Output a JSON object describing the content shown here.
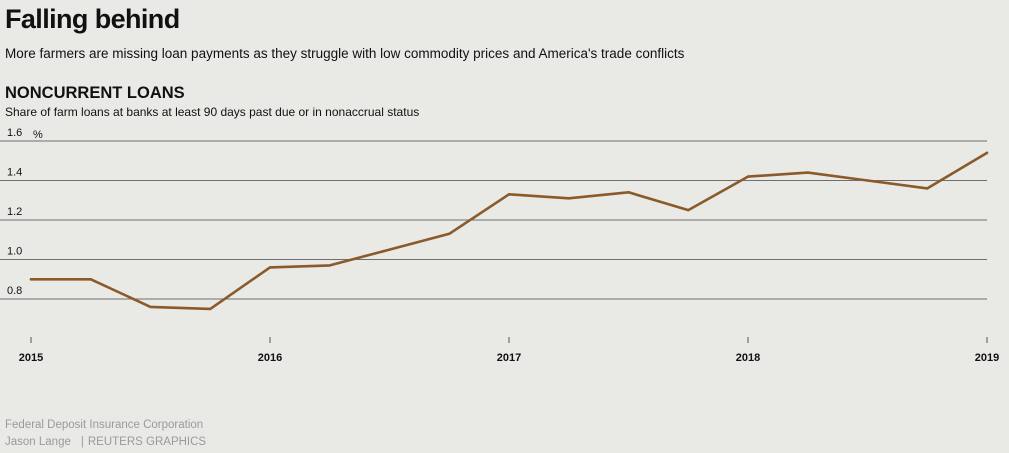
{
  "header": {
    "title": "Falling behind",
    "subtitle": "More farmers are missing loan payments as they struggle with low commodity prices and America's trade conflicts"
  },
  "chart_data": {
    "type": "line",
    "title": "NONCURRENT LOANS",
    "subtitle": "Share of farm loans at banks at least 90 days past due or in nonaccrual status",
    "ylabel": "%",
    "xlabel": "",
    "ylim": [
      0.8,
      1.6
    ],
    "yticks": [
      0.8,
      1.0,
      1.2,
      1.4,
      1.6
    ],
    "ytick_labels": [
      "0.8",
      "1.0",
      "1.2",
      "1.4",
      "1.6"
    ],
    "xlim": [
      2015,
      2019
    ],
    "xticks": [
      2015,
      2016,
      2017,
      2018,
      2019
    ],
    "xtick_labels": [
      "2015",
      "2016",
      "2017",
      "2018",
      "2019"
    ],
    "grid": true,
    "color": "#8b5a2b",
    "series": [
      {
        "name": "Noncurrent loans",
        "x": [
          2015.0,
          2015.25,
          2015.5,
          2015.75,
          2016.0,
          2016.25,
          2016.5,
          2016.75,
          2017.0,
          2017.25,
          2017.5,
          2017.75,
          2018.0,
          2018.25,
          2018.5,
          2018.75,
          2019.0
        ],
        "values": [
          0.9,
          0.9,
          0.76,
          0.75,
          0.96,
          0.97,
          1.05,
          1.13,
          1.33,
          1.31,
          1.34,
          1.25,
          1.42,
          1.44,
          1.4,
          1.36,
          1.54
        ]
      }
    ]
  },
  "footer": {
    "source": "Federal Deposit Insurance Corporation",
    "author": "Jason Lange",
    "separator": "|",
    "organization": "REUTERS GRAPHICS"
  }
}
